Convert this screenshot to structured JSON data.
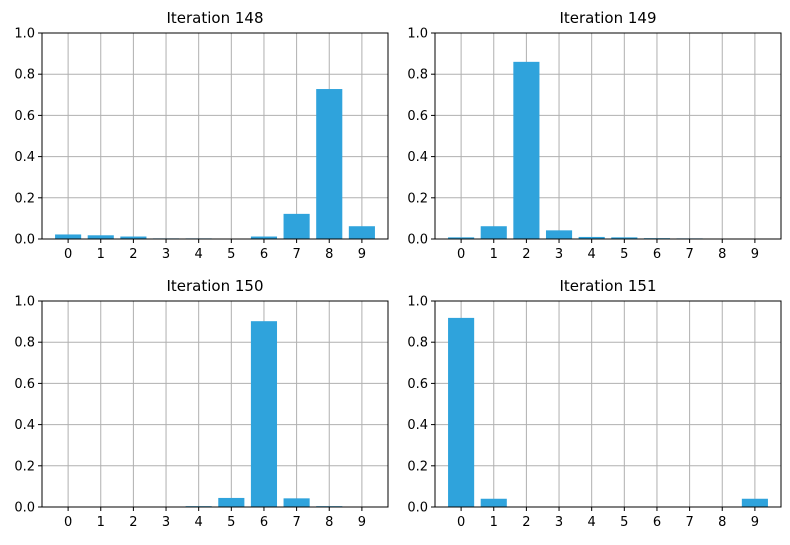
{
  "chart_data": [
    {
      "type": "bar",
      "title": "Iteration 148",
      "categories": [
        "0",
        "1",
        "2",
        "3",
        "4",
        "5",
        "6",
        "7",
        "8",
        "9"
      ],
      "values": [
        0.022,
        0.018,
        0.012,
        0.003,
        0.003,
        0.001,
        0.012,
        0.122,
        0.728,
        0.062
      ],
      "ylim": [
        0,
        1.0
      ],
      "yticks": [
        "0.0",
        "0.2",
        "0.4",
        "0.6",
        "0.8",
        "1.0"
      ],
      "xlabel": "",
      "ylabel": "",
      "grid": true,
      "color": "#2fa3dc"
    },
    {
      "type": "bar",
      "title": "Iteration 149",
      "categories": [
        "0",
        "1",
        "2",
        "3",
        "4",
        "5",
        "6",
        "7",
        "8",
        "9"
      ],
      "values": [
        0.008,
        0.062,
        0.86,
        0.042,
        0.01,
        0.008,
        0.004,
        0.003,
        0.001,
        0.001
      ],
      "ylim": [
        0,
        1.0
      ],
      "yticks": [
        "0.0",
        "0.2",
        "0.4",
        "0.6",
        "0.8",
        "1.0"
      ],
      "xlabel": "",
      "ylabel": "",
      "grid": true,
      "color": "#2fa3dc"
    },
    {
      "type": "bar",
      "title": "Iteration 150",
      "categories": [
        "0",
        "1",
        "2",
        "3",
        "4",
        "5",
        "6",
        "7",
        "8",
        "9"
      ],
      "values": [
        0.0,
        0.0,
        0.0,
        0.001,
        0.004,
        0.044,
        0.902,
        0.042,
        0.004,
        0.001
      ],
      "ylim": [
        0,
        1.0
      ],
      "yticks": [
        "0.0",
        "0.2",
        "0.4",
        "0.6",
        "0.8",
        "1.0"
      ],
      "xlabel": "",
      "ylabel": "",
      "grid": true,
      "color": "#2fa3dc"
    },
    {
      "type": "bar",
      "title": "Iteration 151",
      "categories": [
        "0",
        "1",
        "2",
        "3",
        "4",
        "5",
        "6",
        "7",
        "8",
        "9"
      ],
      "values": [
        0.918,
        0.04,
        0.001,
        0.0,
        0.0,
        0.0,
        0.0,
        0.0,
        0.0,
        0.04
      ],
      "ylim": [
        0,
        1.0
      ],
      "yticks": [
        "0.0",
        "0.2",
        "0.4",
        "0.6",
        "0.8",
        "1.0"
      ],
      "xlabel": "",
      "ylabel": "",
      "grid": true,
      "color": "#2fa3dc"
    }
  ]
}
